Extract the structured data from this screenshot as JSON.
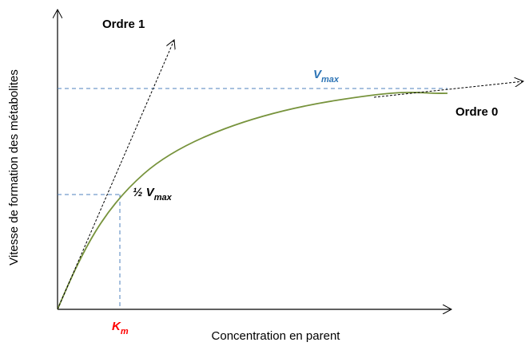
{
  "axes": {
    "y_label": "Vitesse de formation des métabolites",
    "x_label": "Concentration en parent"
  },
  "labels": {
    "order1": "Ordre 1",
    "order0": "Ordre 0",
    "vmax": {
      "main": "V",
      "sub": "max"
    },
    "half_vmax": {
      "main": "½  V",
      "sub": "max"
    },
    "km": {
      "main": "K",
      "sub": "m"
    }
  }
}
